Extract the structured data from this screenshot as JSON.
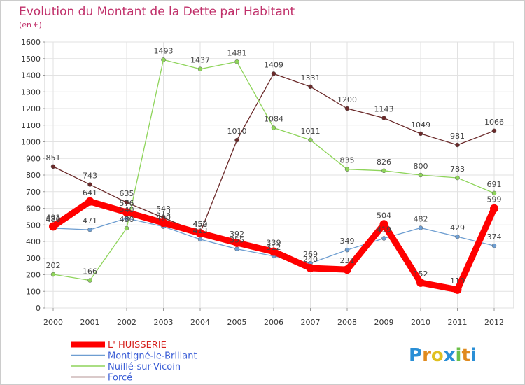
{
  "chart_data": {
    "type": "line",
    "title": "Evolution du Montant de la Dette par Habitant",
    "subtitle": "(en €)",
    "x": [
      "2000",
      "2001",
      "2002",
      "2003",
      "2004",
      "2005",
      "2006",
      "2007",
      "2008",
      "2009",
      "2010",
      "2011",
      "2012"
    ],
    "ylim": [
      0,
      1600
    ],
    "yticks": [
      0,
      100,
      200,
      300,
      400,
      500,
      600,
      700,
      800,
      900,
      1000,
      1100,
      1200,
      1300,
      1400,
      1500,
      1600
    ],
    "grid": true,
    "legend_placement": "bottom-left",
    "series": [
      {
        "name": "L' HUISSERIE",
        "color": "#ff0000",
        "values": [
          491,
          641,
          576,
          513,
          450,
          392,
          339,
          240,
          231,
          504,
          152,
          110,
          599
        ]
      },
      {
        "name": "Montigné-le-Brillant",
        "color": "#6e9ed1",
        "values": [
          480,
          471,
          540,
          490,
          413,
          355,
          312,
          269,
          349,
          419,
          482,
          429,
          374
        ]
      },
      {
        "name": "Nuillé-sur-Vicoin",
        "color": "#8ed45a",
        "values": [
          202,
          166,
          480,
          1493,
          1437,
          1481,
          1084,
          1011,
          835,
          826,
          800,
          783,
          691
        ]
      },
      {
        "name": "Forcé",
        "color": "#6b2a2a",
        "values": [
          851,
          743,
          635,
          543,
          452,
          1010,
          1409,
          1331,
          1200,
          1143,
          1049,
          981,
          1066
        ]
      }
    ]
  },
  "logo": {
    "letters": [
      "P",
      "r",
      "o",
      "x",
      "i",
      "t",
      "i"
    ],
    "colors": [
      "#2a8fd6",
      "#e08a1e",
      "#e0c020",
      "#2a8fd6",
      "#6cc04a",
      "#e08a1e",
      "#2a8fd6"
    ]
  }
}
